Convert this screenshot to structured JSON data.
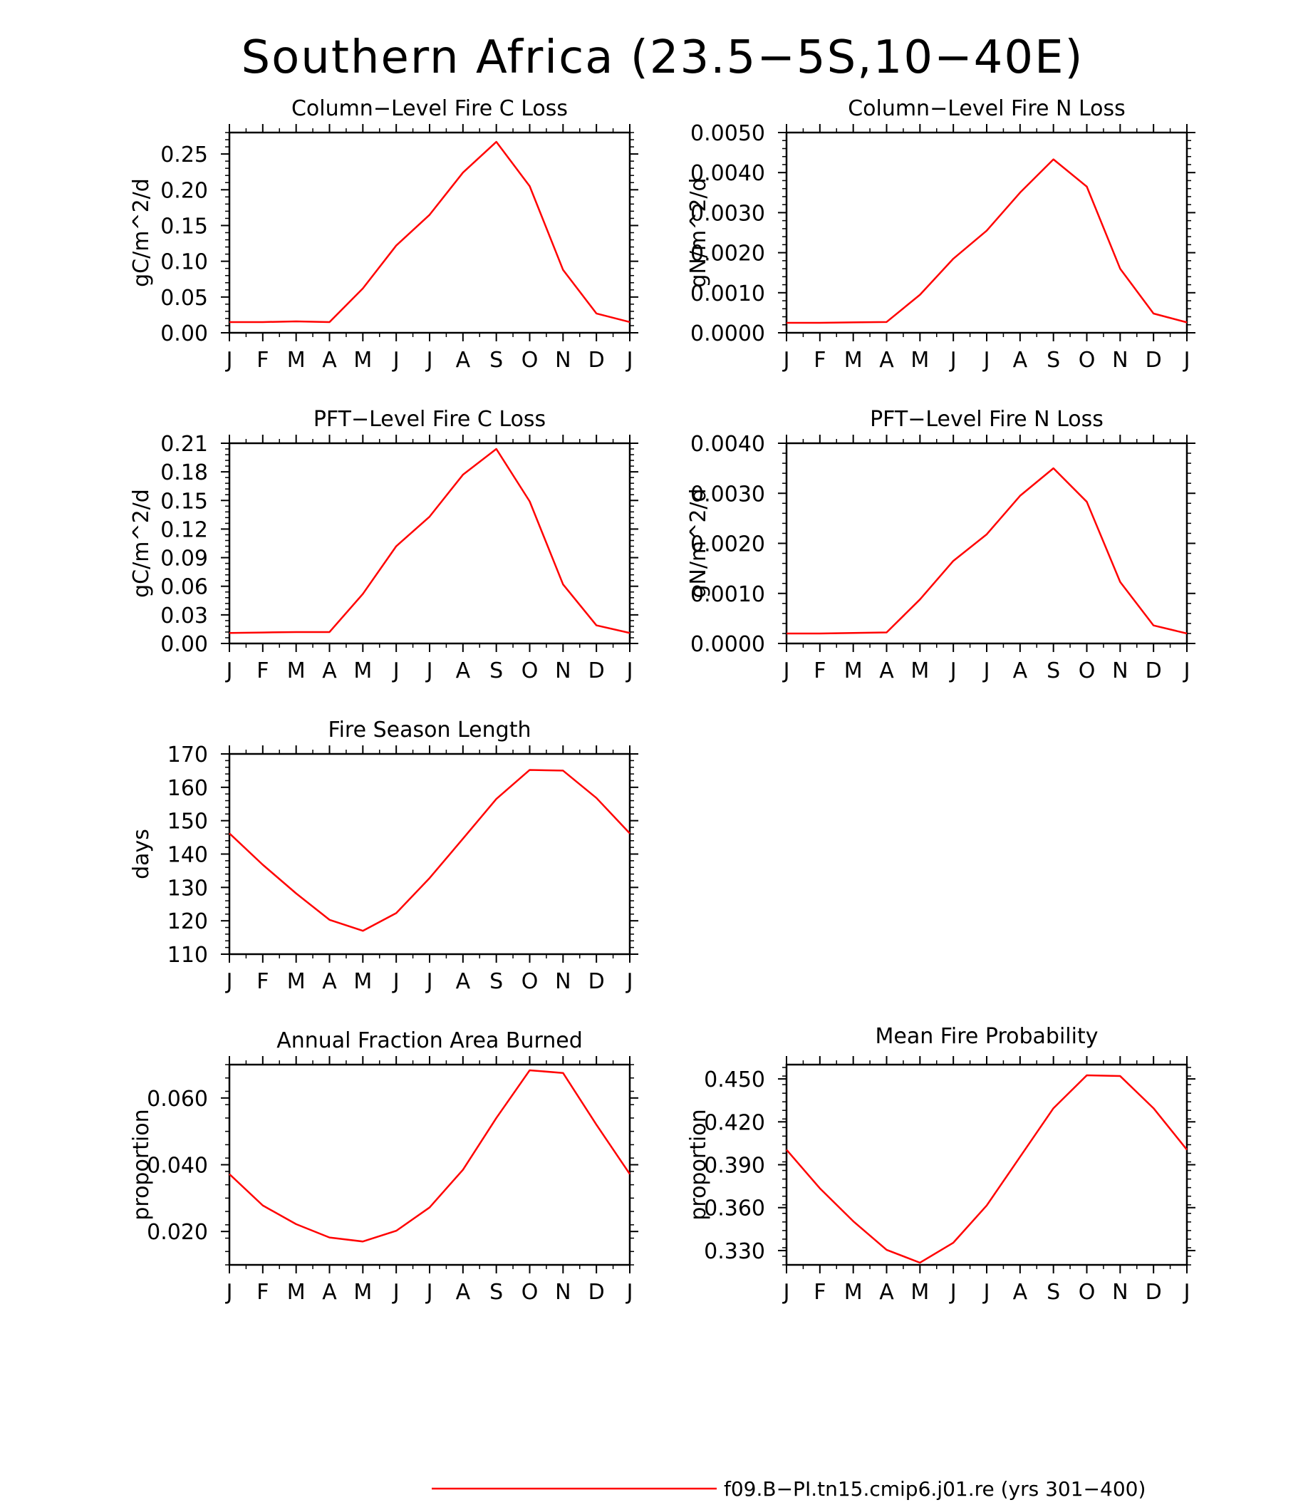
{
  "page": {
    "title": "Southern Africa (23.5−5S,10−40E)"
  },
  "legend": {
    "label": "f09.B−PI.tn15.cmip6.j01.re (yrs 301−400)",
    "color": "#ff0000"
  },
  "chart_data": [
    {
      "type": "line",
      "title": "Column−Level Fire C Loss",
      "ylabel": "gC/m^2/d",
      "categories": [
        "J",
        "F",
        "M",
        "A",
        "M",
        "J",
        "J",
        "A",
        "S",
        "O",
        "N",
        "D",
        "J"
      ],
      "ylim": [
        0,
        0.28
      ],
      "yticks": [
        0,
        0.05,
        0.1,
        0.15,
        0.2,
        0.25
      ],
      "ytick_labels": [
        "0.00",
        "0.05",
        "0.10",
        "0.15",
        "0.20",
        "0.25"
      ],
      "series": [
        {
          "color": "#ff0000",
          "values": [
            0.015,
            0.015,
            0.016,
            0.015,
            0.062,
            0.122,
            0.165,
            0.224,
            0.267,
            0.205,
            0.088,
            0.027,
            0.015
          ]
        }
      ]
    },
    {
      "type": "line",
      "title": "Column−Level Fire N Loss",
      "ylabel": "gN/m^2/d",
      "categories": [
        "J",
        "F",
        "M",
        "A",
        "M",
        "J",
        "J",
        "A",
        "S",
        "O",
        "N",
        "D",
        "J"
      ],
      "ylim": [
        0,
        0.005
      ],
      "yticks": [
        0,
        0.001,
        0.002,
        0.003,
        0.004,
        0.005
      ],
      "ytick_labels": [
        "0.0000",
        "0.0010",
        "0.0020",
        "0.0030",
        "0.0040",
        "0.0050"
      ],
      "series": [
        {
          "color": "#ff0000",
          "values": [
            0.00025,
            0.00025,
            0.00026,
            0.00027,
            0.00095,
            0.00185,
            0.00255,
            0.0035,
            0.00433,
            0.00365,
            0.0016,
            0.00048,
            0.00026
          ]
        }
      ]
    },
    {
      "type": "line",
      "title": "PFT−Level Fire C Loss",
      "ylabel": "gC/m^2/d",
      "categories": [
        "J",
        "F",
        "M",
        "A",
        "M",
        "J",
        "J",
        "A",
        "S",
        "O",
        "N",
        "D",
        "J"
      ],
      "ylim": [
        0,
        0.21
      ],
      "yticks": [
        0,
        0.03,
        0.06,
        0.09,
        0.12,
        0.15,
        0.18,
        0.21
      ],
      "ytick_labels": [
        "0.00",
        "0.03",
        "0.06",
        "0.09",
        "0.12",
        "0.15",
        "0.18",
        "0.21"
      ],
      "series": [
        {
          "color": "#ff0000",
          "values": [
            0.011,
            0.0115,
            0.012,
            0.012,
            0.052,
            0.102,
            0.133,
            0.177,
            0.204,
            0.149,
            0.062,
            0.019,
            0.011
          ]
        }
      ]
    },
    {
      "type": "line",
      "title": "PFT−Level Fire N Loss",
      "ylabel": "gN/m^2/d",
      "categories": [
        "J",
        "F",
        "M",
        "A",
        "M",
        "J",
        "J",
        "A",
        "S",
        "O",
        "N",
        "D",
        "J"
      ],
      "ylim": [
        0,
        0.004
      ],
      "yticks": [
        0,
        0.001,
        0.002,
        0.003,
        0.004
      ],
      "ytick_labels": [
        "0.0000",
        "0.0010",
        "0.0020",
        "0.0030",
        "0.0040"
      ],
      "series": [
        {
          "color": "#ff0000",
          "values": [
            0.0002,
            0.0002,
            0.00021,
            0.00022,
            0.00088,
            0.00165,
            0.00218,
            0.00295,
            0.0035,
            0.00283,
            0.00123,
            0.00036,
            0.0002
          ]
        }
      ]
    },
    {
      "type": "line",
      "title": "Fire Season Length",
      "ylabel": "days",
      "categories": [
        "J",
        "F",
        "M",
        "A",
        "M",
        "J",
        "J",
        "A",
        "S",
        "O",
        "N",
        "D",
        "J"
      ],
      "ylim": [
        110,
        170
      ],
      "yticks": [
        110,
        120,
        130,
        140,
        150,
        160,
        170
      ],
      "ytick_labels": [
        "110",
        "120",
        "130",
        "140",
        "150",
        "160",
        "170"
      ],
      "series": [
        {
          "color": "#ff0000",
          "values": [
            146.2,
            136.8,
            128.2,
            120.3,
            117.0,
            122.3,
            132.8,
            144.6,
            156.5,
            165.2,
            165.0,
            156.8,
            146.2
          ]
        }
      ]
    },
    {
      "type": "line",
      "title": "Annual Fraction Area Burned",
      "ylabel": "proportion",
      "categories": [
        "J",
        "F",
        "M",
        "A",
        "M",
        "J",
        "J",
        "A",
        "S",
        "O",
        "N",
        "D",
        "J"
      ],
      "ylim": [
        0.01,
        0.07
      ],
      "yticks": [
        0.02,
        0.04,
        0.06
      ],
      "ytick_labels": [
        "0.020",
        "0.040",
        "0.060"
      ],
      "series": [
        {
          "color": "#ff0000",
          "values": [
            0.0372,
            0.0278,
            0.0222,
            0.0182,
            0.017,
            0.0202,
            0.0272,
            0.0385,
            0.054,
            0.0683,
            0.0675,
            0.052,
            0.0372
          ]
        }
      ]
    },
    {
      "type": "line",
      "title": "Mean Fire Probability",
      "ylabel": "proportion",
      "categories": [
        "J",
        "F",
        "M",
        "A",
        "M",
        "J",
        "J",
        "A",
        "S",
        "O",
        "N",
        "D",
        "J"
      ],
      "ylim": [
        0.32,
        0.46
      ],
      "yticks": [
        0.33,
        0.36,
        0.39,
        0.42,
        0.45
      ],
      "ytick_labels": [
        "0.330",
        "0.360",
        "0.390",
        "0.420",
        "0.450"
      ],
      "series": [
        {
          "color": "#ff0000",
          "values": [
            0.4005,
            0.3735,
            0.3505,
            0.3305,
            0.3215,
            0.3355,
            0.3615,
            0.3955,
            0.4295,
            0.4525,
            0.452,
            0.4295,
            0.4005
          ]
        }
      ]
    }
  ]
}
